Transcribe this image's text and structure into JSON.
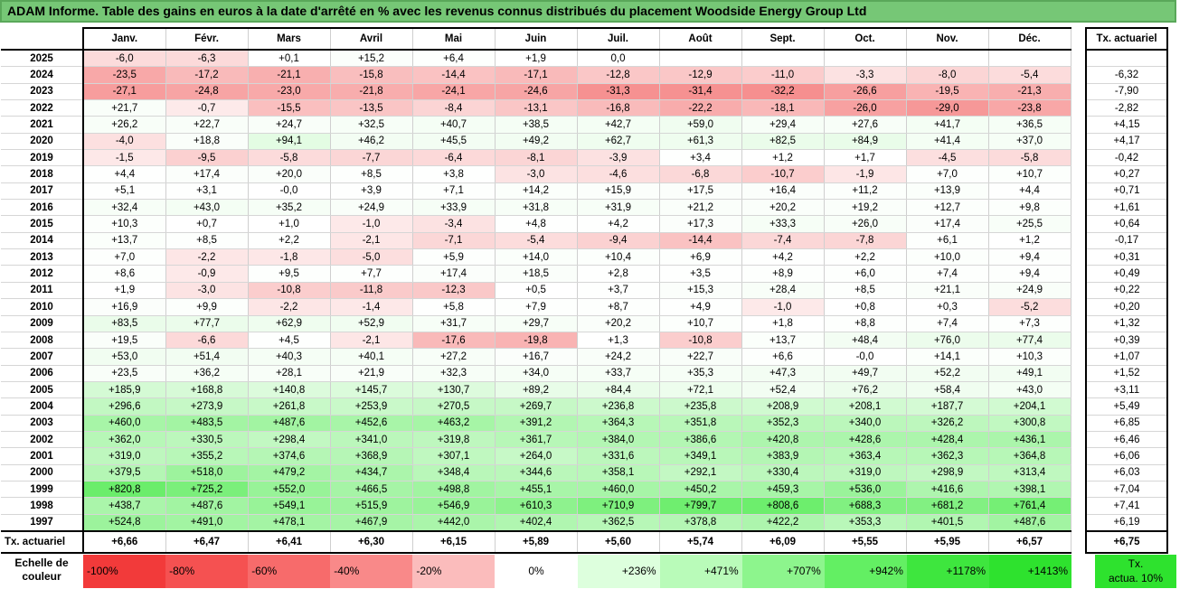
{
  "title": "ADAM Informe. Table des gains en euros à la date d'arrêté en % avec les revenus connus distribués du placement Woodside Energy Group Ltd",
  "chart_data": {
    "type": "table",
    "months": [
      "Janv.",
      "Févr.",
      "Mars",
      "Avril",
      "Mai",
      "Juin",
      "Juil.",
      "Août",
      "Sept.",
      "Oct.",
      "Nov.",
      "Déc."
    ],
    "actuarial_header": "Tx. actuariel",
    "rows": [
      {
        "year": "2025",
        "values": [
          "-6,0",
          "-6,3",
          "+0,1",
          "+15,2",
          "+6,4",
          "+1,9",
          "0,0",
          "",
          "",
          "",
          "",
          ""
        ],
        "act": ""
      },
      {
        "year": "2024",
        "values": [
          "-23,5",
          "-17,2",
          "-21,1",
          "-15,8",
          "-14,4",
          "-17,1",
          "-12,8",
          "-12,9",
          "-11,0",
          "-3,3",
          "-8,0",
          "-5,4"
        ],
        "act": "-6,32"
      },
      {
        "year": "2023",
        "values": [
          "-27,1",
          "-24,8",
          "-23,0",
          "-21,8",
          "-24,1",
          "-24,6",
          "-31,3",
          "-31,4",
          "-32,2",
          "-26,6",
          "-19,5",
          "-21,3"
        ],
        "act": "-7,90"
      },
      {
        "year": "2022",
        "values": [
          "+21,7",
          "-0,7",
          "-15,5",
          "-13,5",
          "-8,4",
          "-13,1",
          "-16,8",
          "-22,2",
          "-18,1",
          "-26,0",
          "-29,0",
          "-23,8"
        ],
        "act": "-2,82"
      },
      {
        "year": "2021",
        "values": [
          "+26,2",
          "+22,7",
          "+24,7",
          "+32,5",
          "+40,7",
          "+38,5",
          "+42,7",
          "+59,0",
          "+29,4",
          "+27,6",
          "+41,7",
          "+36,5"
        ],
        "act": "+4,15"
      },
      {
        "year": "2020",
        "values": [
          "-4,0",
          "+18,8",
          "+94,1",
          "+46,2",
          "+45,5",
          "+49,2",
          "+62,7",
          "+61,3",
          "+82,5",
          "+84,9",
          "+41,4",
          "+37,0"
        ],
        "act": "+4,17"
      },
      {
        "year": "2019",
        "values": [
          "-1,5",
          "-9,5",
          "-5,8",
          "-7,7",
          "-6,4",
          "-8,1",
          "-3,9",
          "+3,4",
          "+1,2",
          "+1,7",
          "-4,5",
          "-5,8"
        ],
        "act": "-0,42"
      },
      {
        "year": "2018",
        "values": [
          "+4,4",
          "+17,4",
          "+20,0",
          "+8,5",
          "+3,8",
          "-3,0",
          "-4,6",
          "-6,8",
          "-10,7",
          "-1,9",
          "+7,0",
          "+10,7"
        ],
        "act": "+0,27"
      },
      {
        "year": "2017",
        "values": [
          "+5,1",
          "+3,1",
          "-0,0",
          "+3,9",
          "+7,1",
          "+14,2",
          "+15,9",
          "+17,5",
          "+16,4",
          "+11,2",
          "+13,9",
          "+4,4"
        ],
        "act": "+0,71"
      },
      {
        "year": "2016",
        "values": [
          "+32,4",
          "+43,0",
          "+35,2",
          "+24,9",
          "+33,9",
          "+31,8",
          "+31,9",
          "+21,2",
          "+20,2",
          "+19,2",
          "+12,7",
          "+9,8"
        ],
        "act": "+1,61"
      },
      {
        "year": "2015",
        "values": [
          "+10,3",
          "+0,7",
          "+1,0",
          "-1,0",
          "-3,4",
          "+4,8",
          "+4,2",
          "+17,3",
          "+33,3",
          "+26,0",
          "+17,4",
          "+25,5"
        ],
        "act": "+0,64"
      },
      {
        "year": "2014",
        "values": [
          "+13,7",
          "+8,5",
          "+2,2",
          "-2,1",
          "-7,1",
          "-5,4",
          "-9,4",
          "-14,4",
          "-7,4",
          "-7,8",
          "+6,1",
          "+1,2"
        ],
        "act": "-0,17"
      },
      {
        "year": "2013",
        "values": [
          "+7,0",
          "-2,2",
          "-1,8",
          "-5,0",
          "+5,9",
          "+14,0",
          "+10,4",
          "+6,9",
          "+4,2",
          "+2,2",
          "+10,0",
          "+9,4"
        ],
        "act": "+0,31"
      },
      {
        "year": "2012",
        "values": [
          "+8,6",
          "-0,9",
          "+9,5",
          "+7,7",
          "+17,4",
          "+18,5",
          "+2,8",
          "+3,5",
          "+8,9",
          "+6,0",
          "+7,4",
          "+9,4"
        ],
        "act": "+0,49"
      },
      {
        "year": "2011",
        "values": [
          "+1,9",
          "-3,0",
          "-10,8",
          "-11,8",
          "-12,3",
          "+0,5",
          "+3,7",
          "+15,3",
          "+28,4",
          "+8,5",
          "+21,1",
          "+24,9"
        ],
        "act": "+0,22"
      },
      {
        "year": "2010",
        "values": [
          "+16,9",
          "+9,9",
          "-2,2",
          "-1,4",
          "+5,8",
          "+7,9",
          "+8,7",
          "+4,9",
          "-1,0",
          "+0,8",
          "+0,3",
          "-5,2"
        ],
        "act": "+0,20"
      },
      {
        "year": "2009",
        "values": [
          "+83,5",
          "+77,7",
          "+62,9",
          "+52,9",
          "+31,7",
          "+29,7",
          "+20,2",
          "+10,7",
          "+1,8",
          "+8,8",
          "+7,4",
          "+7,3"
        ],
        "act": "+1,32"
      },
      {
        "year": "2008",
        "values": [
          "+19,5",
          "-6,6",
          "+4,5",
          "-2,1",
          "-17,6",
          "-19,8",
          "+1,3",
          "-10,8",
          "+13,7",
          "+48,4",
          "+76,0",
          "+77,4"
        ],
        "act": "+0,39"
      },
      {
        "year": "2007",
        "values": [
          "+53,0",
          "+51,4",
          "+40,3",
          "+40,1",
          "+27,2",
          "+16,7",
          "+24,2",
          "+22,7",
          "+6,6",
          "-0,0",
          "+14,1",
          "+10,3"
        ],
        "act": "+1,07"
      },
      {
        "year": "2006",
        "values": [
          "+23,5",
          "+36,2",
          "+28,1",
          "+21,9",
          "+32,3",
          "+34,0",
          "+33,7",
          "+35,3",
          "+47,3",
          "+49,7",
          "+52,2",
          "+49,1"
        ],
        "act": "+1,52"
      },
      {
        "year": "2005",
        "values": [
          "+185,9",
          "+168,8",
          "+140,8",
          "+145,7",
          "+130,7",
          "+89,2",
          "+84,4",
          "+72,1",
          "+52,4",
          "+76,2",
          "+58,4",
          "+43,0"
        ],
        "act": "+3,11"
      },
      {
        "year": "2004",
        "values": [
          "+296,6",
          "+273,9",
          "+261,8",
          "+253,9",
          "+270,5",
          "+269,7",
          "+236,8",
          "+235,8",
          "+208,9",
          "+208,1",
          "+187,7",
          "+204,1"
        ],
        "act": "+5,49"
      },
      {
        "year": "2003",
        "values": [
          "+460,0",
          "+483,5",
          "+487,6",
          "+452,6",
          "+463,2",
          "+391,2",
          "+364,3",
          "+351,8",
          "+352,3",
          "+340,0",
          "+326,2",
          "+300,8"
        ],
        "act": "+6,85"
      },
      {
        "year": "2002",
        "values": [
          "+362,0",
          "+330,5",
          "+298,4",
          "+341,0",
          "+319,8",
          "+361,7",
          "+384,0",
          "+386,6",
          "+420,8",
          "+428,6",
          "+428,4",
          "+436,1"
        ],
        "act": "+6,46"
      },
      {
        "year": "2001",
        "values": [
          "+319,0",
          "+355,2",
          "+374,6",
          "+368,9",
          "+307,1",
          "+264,0",
          "+331,6",
          "+349,1",
          "+383,9",
          "+363,4",
          "+362,3",
          "+364,8"
        ],
        "act": "+6,06"
      },
      {
        "year": "2000",
        "values": [
          "+379,5",
          "+518,0",
          "+479,2",
          "+434,7",
          "+348,4",
          "+344,6",
          "+358,1",
          "+292,1",
          "+330,4",
          "+319,0",
          "+298,9",
          "+313,4"
        ],
        "act": "+6,03"
      },
      {
        "year": "1999",
        "values": [
          "+820,8",
          "+725,2",
          "+552,0",
          "+466,5",
          "+498,8",
          "+455,1",
          "+460,0",
          "+450,2",
          "+459,3",
          "+536,0",
          "+416,6",
          "+398,1"
        ],
        "act": "+7,04"
      },
      {
        "year": "1998",
        "values": [
          "+438,7",
          "+487,6",
          "+549,1",
          "+515,9",
          "+546,9",
          "+610,3",
          "+710,9",
          "+799,7",
          "+808,6",
          "+688,3",
          "+681,2",
          "+761,4"
        ],
        "act": "+7,41"
      },
      {
        "year": "1997",
        "values": [
          "+524,8",
          "+491,0",
          "+478,1",
          "+467,9",
          "+442,0",
          "+402,4",
          "+362,5",
          "+378,8",
          "+422,2",
          "+353,3",
          "+401,5",
          "+487,6"
        ],
        "act": "+6,19"
      }
    ],
    "footer": {
      "label": "Tx. actuariel",
      "values": [
        "+6,66",
        "+6,47",
        "+6,41",
        "+6,30",
        "+6,15",
        "+5,89",
        "+5,60",
        "+5,74",
        "+6,09",
        "+5,55",
        "+5,95",
        "+6,57"
      ],
      "act": "+6,75"
    }
  },
  "scale": {
    "label_line1": "Echelle de",
    "label_line2": "couleur",
    "cells": [
      {
        "text": "-100%",
        "color": "#f23a3a",
        "align": "l"
      },
      {
        "text": "-80%",
        "color": "#f55151",
        "align": "l"
      },
      {
        "text": "-60%",
        "color": "#f76b6b",
        "align": "l"
      },
      {
        "text": "-40%",
        "color": "#f98989",
        "align": "l"
      },
      {
        "text": "-20%",
        "color": "#fbbcbc",
        "align": "l"
      },
      {
        "text": "0%",
        "color": "#ffffff",
        "align": "c"
      },
      {
        "text": "+236%",
        "color": "#ddffdd",
        "align": "r"
      },
      {
        "text": "+471%",
        "color": "#b9fbb9",
        "align": "r"
      },
      {
        "text": "+707%",
        "color": "#8df58d",
        "align": "r"
      },
      {
        "text": "+942%",
        "color": "#63ef63",
        "align": "r"
      },
      {
        "text": "+1178%",
        "color": "#3ee63e",
        "align": "r"
      },
      {
        "text": "+1413%",
        "color": "#2ee22e",
        "align": "r"
      }
    ],
    "tx_line1": "Tx.",
    "tx_line2": "actua. 10%"
  }
}
